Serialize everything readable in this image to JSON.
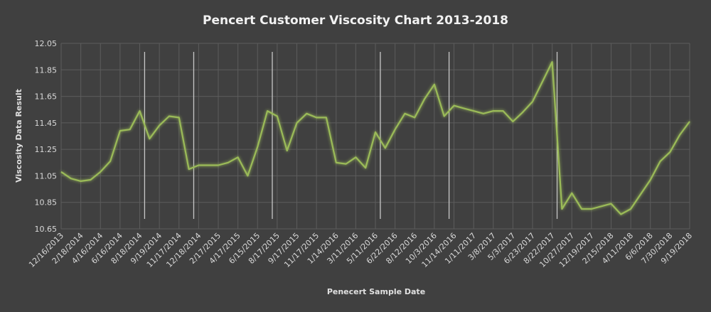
{
  "chart_data": {
    "type": "line",
    "title": "Pencert Customer Viscosity Chart 2013-2018",
    "xlabel": "Penecert Sample Date",
    "ylabel": "Viscosity Data Result",
    "ylim": [
      10.65,
      12.05
    ],
    "yticks": [
      "12.05",
      "11.85",
      "11.65",
      "11.45",
      "11.25",
      "11.05",
      "10.85",
      "10.65"
    ],
    "grid": true,
    "legend": "none",
    "line_color": "#9bbb59",
    "x_tick_labels": [
      "12/16/2013",
      "2/18/2014",
      "4/16/2014",
      "6/16/2014",
      "8/18/2014",
      "9/19/2014",
      "11/17/2014",
      "12/18/2014",
      "2/17/2015",
      "4/17/2015",
      "6/15/2015",
      "8/17/2015",
      "9/17/2015",
      "11/17/2015",
      "1/14/2016",
      "3/11/2016",
      "5/11/2016",
      "6/22/2016",
      "8/12/2016",
      "10/3/2016",
      "11/14/2016",
      "1/11/2017",
      "3/8/2017",
      "5/3/2017",
      "6/23/2017",
      "8/22/2017",
      "10/27/2017",
      "12/19/2017",
      "2/15/2018",
      "4/11/2018",
      "6/6/2018",
      "7/30/2018",
      "9/19/2018"
    ],
    "series": [
      {
        "values": [
          11.08,
          11.03,
          11.01,
          11.02,
          11.08,
          11.16,
          11.39,
          11.4,
          11.54,
          11.33,
          11.43,
          11.5,
          11.49,
          11.1,
          11.13,
          11.13,
          11.13,
          11.15,
          11.19,
          11.05,
          11.27,
          11.54,
          11.5,
          11.24,
          11.45,
          11.52,
          11.49,
          11.49,
          11.15,
          11.14,
          11.19,
          11.11,
          11.38,
          11.26,
          11.4,
          11.52,
          11.49,
          11.63,
          11.74,
          11.5,
          11.58,
          11.56,
          11.54,
          11.52,
          11.54,
          11.54,
          11.46,
          11.53,
          11.61,
          11.76,
          11.91,
          10.8,
          10.92,
          10.8,
          10.8,
          10.82,
          10.84,
          10.76,
          10.8,
          10.91,
          11.02,
          11.16,
          11.23,
          11.36,
          11.46
        ]
      }
    ],
    "vertical_markers_after_point": [
      8,
      13,
      21,
      32,
      39,
      50
    ]
  }
}
